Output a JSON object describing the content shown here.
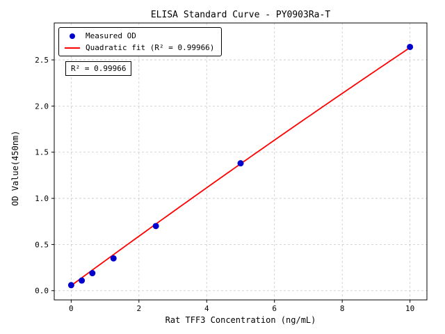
{
  "chart_data": {
    "type": "scatter",
    "title": "ELISA Standard Curve - PY0903Ra-T",
    "xlabel": "Rat TFF3 Concentration (ng/mL)",
    "ylabel": "OD Value(450nm)",
    "xlim": [
      -0.5,
      10.5
    ],
    "ylim": [
      -0.1,
      2.9
    ],
    "xtick_values": [
      0,
      2,
      4,
      6,
      8,
      10
    ],
    "xtick_labels": [
      "0",
      "2",
      "4",
      "6",
      "8",
      "10"
    ],
    "ytick_values": [
      0.0,
      0.5,
      1.0,
      1.5,
      2.0,
      2.5
    ],
    "ytick_labels": [
      "0.0",
      "0.5",
      "1.0",
      "1.5",
      "2.0",
      "2.5"
    ],
    "grid": true,
    "legend_position": "upper-left",
    "legend": [
      {
        "label": "Measured OD",
        "marker": "dot",
        "color": "#0000cd"
      },
      {
        "label": "Quadratic fit (R² = 0.99966)",
        "marker": "line",
        "color": "#ff0000"
      }
    ],
    "annotation": "R² = 0.99966",
    "points": {
      "x": [
        0,
        0.3125,
        0.625,
        1.25,
        2.5,
        5,
        10
      ],
      "y": [
        0.06,
        0.11,
        0.19,
        0.35,
        0.7,
        1.38,
        2.64
      ]
    },
    "fit": {
      "type": "quadratic",
      "a": -0.0012,
      "b": 0.2698,
      "c": 0.055,
      "x_start": 0,
      "x_end": 10
    },
    "colors": {
      "points": "#0000cd",
      "fit_line": "#ff0000",
      "grid": "#c8c8c8",
      "axes": "#000000"
    }
  }
}
